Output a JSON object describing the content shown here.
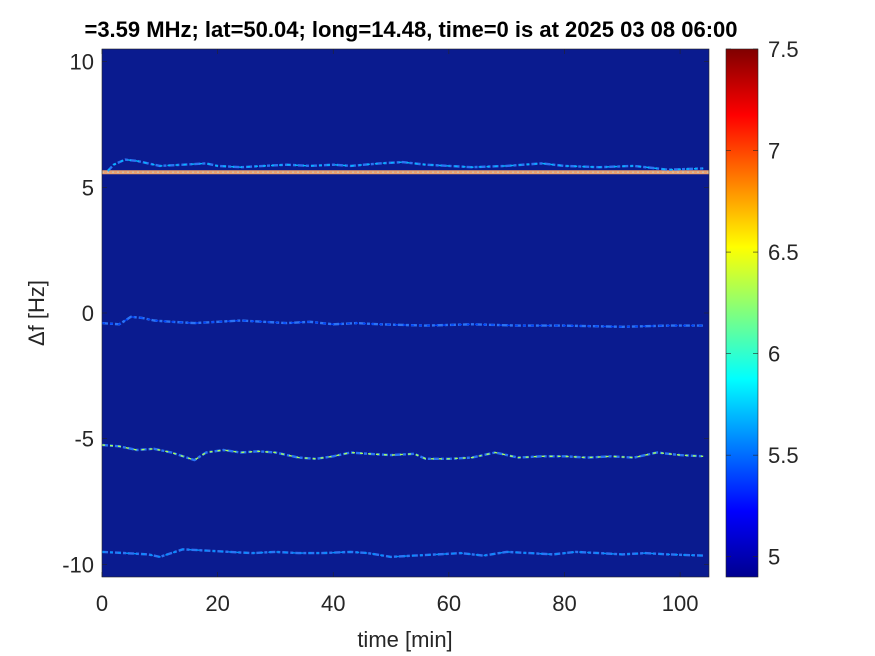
{
  "chart_data": {
    "type": "heatmap",
    "title": "=3.59 MHz;  lat=50.04; long=14.48, time=0 is at 2025 03 08 06:00",
    "xlabel": "time [min]",
    "ylabel": "Δf [Hz]",
    "xlim": [
      0,
      105
    ],
    "ylim": [
      -10.5,
      10.5
    ],
    "x_ticks": [
      0,
      20,
      40,
      60,
      80,
      100
    ],
    "x_tick_labels": [
      "0",
      "20",
      "40",
      "60",
      "80",
      "100"
    ],
    "y_ticks": [
      10,
      5,
      0,
      -5,
      -10
    ],
    "y_tick_labels": [
      "10",
      "5",
      "0",
      "-5",
      "-10"
    ],
    "colorbar": {
      "colormap": "jet",
      "clim": [
        4.9,
        7.5
      ],
      "ticks": [
        5,
        5.5,
        6,
        6.5,
        7,
        7.5
      ],
      "tick_labels": [
        "5",
        "5.5",
        "6",
        "6.5",
        "7",
        "7.5"
      ]
    },
    "background_value": 4.92,
    "background_color": "#0a1b8f",
    "grid": false,
    "traces": [
      {
        "description": "strong constant carrier line",
        "points": [
          [
            0,
            5.6
          ],
          [
            105,
            5.6
          ]
        ],
        "value": 7.0,
        "constant": true
      },
      {
        "points": [
          [
            1,
            5.65
          ],
          [
            2,
            5.9
          ],
          [
            4,
            6.1
          ],
          [
            6,
            6.05
          ],
          [
            8,
            5.95
          ],
          [
            10,
            5.85
          ],
          [
            14,
            5.9
          ],
          [
            18,
            5.95
          ],
          [
            20,
            5.85
          ],
          [
            24,
            5.8
          ],
          [
            28,
            5.85
          ],
          [
            32,
            5.9
          ],
          [
            36,
            5.85
          ],
          [
            40,
            5.9
          ],
          [
            43,
            5.85
          ],
          [
            48,
            5.95
          ],
          [
            52,
            6.0
          ],
          [
            56,
            5.9
          ],
          [
            60,
            5.85
          ],
          [
            64,
            5.8
          ],
          [
            70,
            5.85
          ],
          [
            76,
            5.95
          ],
          [
            80,
            5.85
          ],
          [
            86,
            5.8
          ],
          [
            92,
            5.85
          ],
          [
            98,
            5.7
          ],
          [
            104,
            5.75
          ]
        ],
        "value": 5.7
      },
      {
        "points": [
          [
            0,
            -0.4
          ],
          [
            3,
            -0.45
          ],
          [
            5,
            -0.15
          ],
          [
            7,
            -0.2
          ],
          [
            9,
            -0.3
          ],
          [
            12,
            -0.35
          ],
          [
            16,
            -0.4
          ],
          [
            20,
            -0.35
          ],
          [
            24,
            -0.3
          ],
          [
            28,
            -0.35
          ],
          [
            32,
            -0.4
          ],
          [
            36,
            -0.35
          ],
          [
            40,
            -0.45
          ],
          [
            44,
            -0.4
          ],
          [
            48,
            -0.45
          ],
          [
            56,
            -0.5
          ],
          [
            64,
            -0.45
          ],
          [
            72,
            -0.5
          ],
          [
            80,
            -0.5
          ],
          [
            90,
            -0.55
          ],
          [
            98,
            -0.5
          ],
          [
            104,
            -0.5
          ]
        ],
        "value": 5.4
      },
      {
        "points": [
          [
            0,
            -5.25
          ],
          [
            3,
            -5.3
          ],
          [
            6,
            -5.45
          ],
          [
            9,
            -5.4
          ],
          [
            12,
            -5.55
          ],
          [
            16,
            -5.85
          ],
          [
            18,
            -5.55
          ],
          [
            21,
            -5.45
          ],
          [
            24,
            -5.55
          ],
          [
            27,
            -5.5
          ],
          [
            30,
            -5.55
          ],
          [
            34,
            -5.75
          ],
          [
            37,
            -5.8
          ],
          [
            40,
            -5.7
          ],
          [
            43,
            -5.55
          ],
          [
            46,
            -5.6
          ],
          [
            50,
            -5.65
          ],
          [
            54,
            -5.6
          ],
          [
            56,
            -5.8
          ],
          [
            60,
            -5.8
          ],
          [
            64,
            -5.75
          ],
          [
            68,
            -5.55
          ],
          [
            72,
            -5.75
          ],
          [
            76,
            -5.7
          ],
          [
            80,
            -5.7
          ],
          [
            84,
            -5.75
          ],
          [
            88,
            -5.7
          ],
          [
            92,
            -5.75
          ],
          [
            96,
            -5.55
          ],
          [
            100,
            -5.65
          ],
          [
            104,
            -5.7
          ]
        ],
        "value": 6.3
      },
      {
        "points": [
          [
            0,
            -9.5
          ],
          [
            4,
            -9.55
          ],
          [
            8,
            -9.6
          ],
          [
            10,
            -9.7
          ],
          [
            14,
            -9.4
          ],
          [
            18,
            -9.45
          ],
          [
            22,
            -9.5
          ],
          [
            26,
            -9.55
          ],
          [
            30,
            -9.5
          ],
          [
            34,
            -9.55
          ],
          [
            38,
            -9.55
          ],
          [
            43,
            -9.5
          ],
          [
            46,
            -9.55
          ],
          [
            50,
            -9.7
          ],
          [
            54,
            -9.65
          ],
          [
            58,
            -9.6
          ],
          [
            62,
            -9.55
          ],
          [
            66,
            -9.65
          ],
          [
            70,
            -9.5
          ],
          [
            74,
            -9.55
          ],
          [
            78,
            -9.6
          ],
          [
            82,
            -9.5
          ],
          [
            86,
            -9.55
          ],
          [
            90,
            -9.6
          ],
          [
            94,
            -9.55
          ],
          [
            98,
            -9.6
          ],
          [
            104,
            -9.65
          ]
        ],
        "value": 5.6
      }
    ]
  }
}
